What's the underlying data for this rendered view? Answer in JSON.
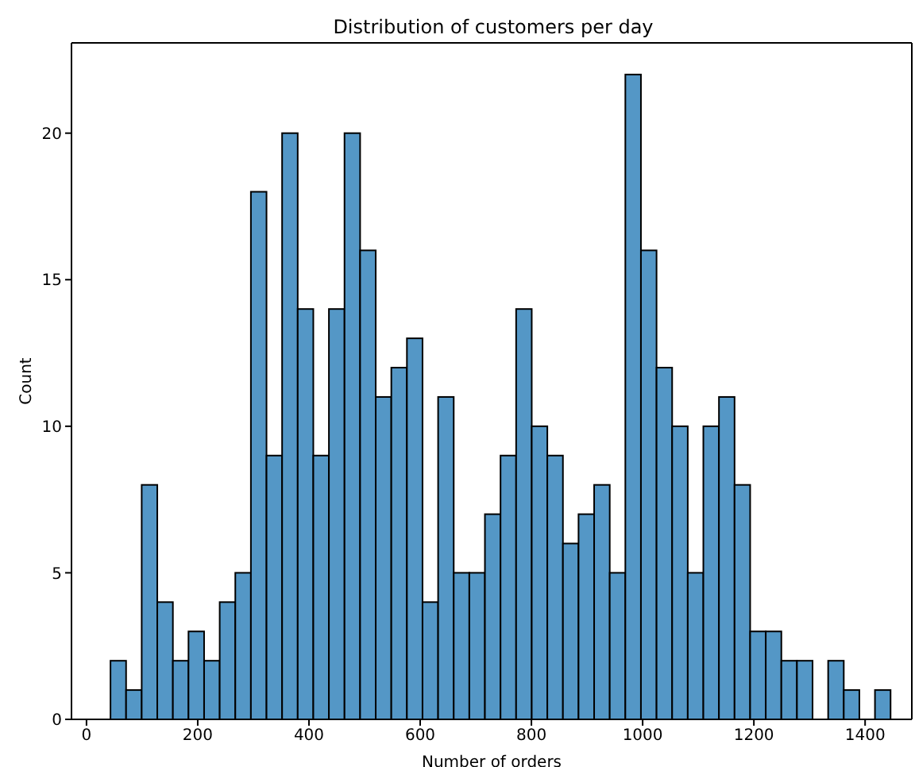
{
  "chart_data": {
    "type": "histogram",
    "title": "Distribution of customers per day",
    "xlabel": "Number of orders",
    "ylabel": "Count",
    "color": "#5497c6",
    "bins": [
      43,
      71,
      99,
      127,
      155,
      183,
      211,
      239,
      267,
      295,
      323,
      351,
      379,
      407,
      435,
      463,
      491,
      519,
      547,
      575,
      603,
      631,
      659,
      687,
      715,
      743,
      771,
      799,
      827,
      855,
      883,
      911,
      939,
      967,
      995,
      1023,
      1051,
      1079,
      1107,
      1135,
      1163,
      1191,
      1219,
      1247,
      1275,
      1303,
      1331,
      1359,
      1387,
      1415,
      1443
    ],
    "values": [
      2,
      1,
      8,
      4,
      2,
      3,
      2,
      4,
      5,
      18,
      9,
      20,
      14,
      9,
      14,
      20,
      16,
      11,
      12,
      13,
      4,
      11,
      5,
      5,
      7,
      9,
      14,
      10,
      9,
      6,
      7,
      8,
      5,
      22,
      16,
      12,
      10,
      5,
      10,
      11,
      8,
      3,
      3,
      2,
      2,
      0,
      2,
      1,
      0,
      1
    ],
    "xlim": [
      -27,
      1484
    ],
    "ylim": [
      0,
      23.08
    ],
    "xticks": [
      0,
      200,
      400,
      600,
      800,
      1000,
      1200,
      1400
    ],
    "yticks": [
      0,
      5,
      10,
      15,
      20
    ],
    "grid": false
  }
}
